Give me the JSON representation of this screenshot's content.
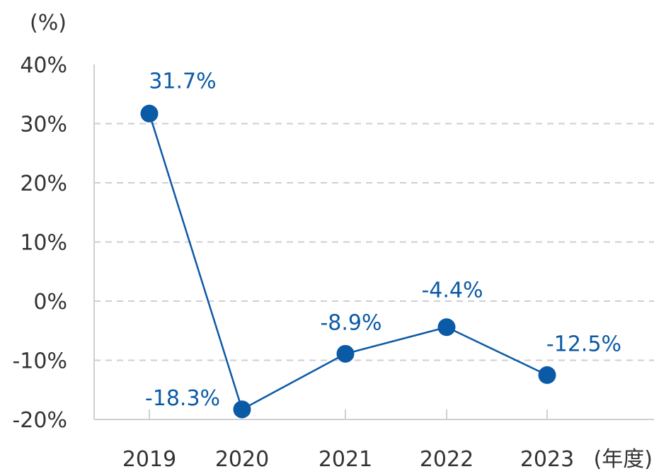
{
  "chart_data": {
    "type": "line",
    "categories": [
      "2019",
      "2020",
      "2021",
      "2022",
      "2023"
    ],
    "values": [
      31.7,
      -18.3,
      -8.9,
      -4.4,
      -12.5
    ],
    "data_labels": [
      "31.7%",
      "-18.3%",
      "-8.9%",
      "-4.4%",
      "-12.5%"
    ],
    "ylabel": "(%)",
    "xlabel": "(年度)",
    "y_ticks": [
      "40%",
      "30%",
      "20%",
      "10%",
      "0%",
      "-10%",
      "-20%"
    ],
    "y_tick_values": [
      40,
      30,
      20,
      10,
      0,
      -10,
      -20
    ],
    "ylim": [
      -20,
      40
    ],
    "grid": true,
    "color": "#0b5aa6"
  }
}
